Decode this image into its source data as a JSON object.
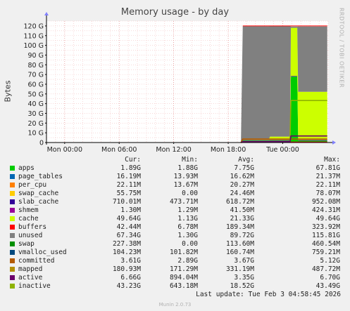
{
  "title": "Memory usage - by day",
  "ylabel": "Bytes",
  "side_label": "RRDTOOL / TOBI OETIKER",
  "footer": "Munin 2.0.73",
  "last_update": "Last update:  Tue Feb  3 04:58:45 2026",
  "legend_headers": {
    "cur": "Cur:",
    "min": "Min:",
    "avg": "Avg:",
    "max": "Max:"
  },
  "legend": [
    {
      "name": "apps",
      "color": "#00cc00",
      "cur": "1.89G",
      "min": "1.88G",
      "avg": "7.75G",
      "max": "67.81G"
    },
    {
      "name": "page_tables",
      "color": "#0066b3",
      "cur": "16.19M",
      "min": "13.93M",
      "avg": "16.62M",
      "max": "21.37M"
    },
    {
      "name": "per_cpu",
      "color": "#ff8000",
      "cur": "22.11M",
      "min": "13.67M",
      "avg": "20.27M",
      "max": "22.11M"
    },
    {
      "name": "swap_cache",
      "color": "#ffcc00",
      "cur": "55.75M",
      "min": "0.00",
      "avg": "24.46M",
      "max": "78.07M"
    },
    {
      "name": "slab_cache",
      "color": "#330099",
      "cur": "710.01M",
      "min": "473.71M",
      "avg": "618.72M",
      "max": "952.08M"
    },
    {
      "name": "shmem",
      "color": "#990099",
      "cur": "1.30M",
      "min": "1.29M",
      "avg": "41.50M",
      "max": "424.31M"
    },
    {
      "name": "cache",
      "color": "#ccff00",
      "cur": "49.64G",
      "min": "1.13G",
      "avg": "21.33G",
      "max": "49.64G"
    },
    {
      "name": "buffers",
      "color": "#ff0000",
      "cur": "42.44M",
      "min": "6.78M",
      "avg": "189.34M",
      "max": "323.92M"
    },
    {
      "name": "unused",
      "color": "#808080",
      "cur": "67.34G",
      "min": "1.30G",
      "avg": "89.72G",
      "max": "115.81G"
    },
    {
      "name": "swap",
      "color": "#008f00",
      "cur": "227.38M",
      "min": "0.00",
      "avg": "113.60M",
      "max": "460.54M"
    },
    {
      "name": "vmalloc_used",
      "color": "#00487d",
      "cur": "104.23M",
      "min": "101.82M",
      "avg": "160.74M",
      "max": "759.21M"
    },
    {
      "name": "committed",
      "color": "#b35a00",
      "cur": "3.61G",
      "min": "2.89G",
      "avg": "3.67G",
      "max": "5.12G"
    },
    {
      "name": "mapped",
      "color": "#b38f00",
      "cur": "180.93M",
      "min": "171.29M",
      "avg": "331.19M",
      "max": "487.72M"
    },
    {
      "name": "active",
      "color": "#6b006b",
      "cur": "6.66G",
      "min": "894.04M",
      "avg": "3.35G",
      "max": "6.70G"
    },
    {
      "name": "inactive",
      "color": "#8fb300",
      "cur": "43.23G",
      "min": "643.18M",
      "avg": "18.52G",
      "max": "43.49G"
    }
  ],
  "chart_data": {
    "type": "area",
    "title": "Memory usage - by day",
    "ylabel": "Bytes",
    "x_ticks": [
      "Mon 00:00",
      "Mon 06:00",
      "Mon 12:00",
      "Mon 18:00",
      "Tue 00:00"
    ],
    "y_ticks": [
      "0",
      "10 G",
      "20 G",
      "30 G",
      "40 G",
      "50 G",
      "60 G",
      "70 G",
      "80 G",
      "90 G",
      "100 G",
      "110 G",
      "120 G"
    ],
    "ylim": [
      0,
      125
    ],
    "x_hours_range": [
      -26,
      5
    ],
    "grid": true,
    "stack_order": [
      "apps",
      "slab_cache",
      "cache",
      "unused",
      "swap"
    ],
    "stacked_series": [
      {
        "name": "apps",
        "color": "#00cc00",
        "points": [
          [
            19.4,
            0
          ],
          [
            19.6,
            2.1
          ],
          [
            22.5,
            2.0
          ],
          [
            22.6,
            1.9
          ],
          [
            24.8,
            1.9
          ],
          [
            24.9,
            67.8
          ],
          [
            25.6,
            67.8
          ],
          [
            25.7,
            1.9
          ],
          [
            28.9,
            1.9
          ]
        ]
      },
      {
        "name": "slab_cache",
        "color": "#330099",
        "points": [
          [
            19.4,
            0
          ],
          [
            19.6,
            0.6
          ],
          [
            28.9,
            0.7
          ]
        ]
      },
      {
        "name": "cache",
        "color": "#ccff00",
        "points": [
          [
            19.4,
            0
          ],
          [
            19.6,
            1.3
          ],
          [
            22.5,
            1.2
          ],
          [
            22.6,
            3.5
          ],
          [
            24.8,
            3.5
          ],
          [
            24.9,
            49.6
          ],
          [
            25.6,
            49.6
          ],
          [
            25.7,
            49.6
          ],
          [
            28.9,
            49.6
          ]
        ]
      },
      {
        "name": "unused",
        "color": "#808080",
        "points": [
          [
            19.4,
            0
          ],
          [
            19.6,
            115.8
          ],
          [
            22.5,
            115.8
          ],
          [
            22.6,
            114.0
          ],
          [
            24.8,
            114.0
          ],
          [
            24.9,
            1.3
          ],
          [
            25.6,
            1.3
          ],
          [
            25.7,
            67.3
          ],
          [
            28.9,
            67.3
          ]
        ]
      }
    ],
    "line_series": [
      {
        "name": "committed",
        "color": "#b35a00",
        "points": [
          [
            19.4,
            0
          ],
          [
            19.6,
            3.6
          ],
          [
            28.9,
            3.6
          ]
        ]
      },
      {
        "name": "inactive",
        "color": "#8fb300",
        "points": [
          [
            19.4,
            0
          ],
          [
            19.6,
            1.0
          ],
          [
            24.8,
            1.0
          ],
          [
            24.9,
            43.2
          ],
          [
            28.9,
            43.2
          ]
        ]
      },
      {
        "name": "buffers",
        "color": "#ff0000",
        "points": [
          [
            19.4,
            0
          ],
          [
            19.6,
            0.3
          ],
          [
            28.9,
            0.3
          ]
        ]
      },
      {
        "name": "active",
        "color": "#6b006b",
        "points": [
          [
            19.4,
            0
          ],
          [
            19.6,
            0.9
          ],
          [
            24.8,
            0.9
          ],
          [
            24.9,
            6.7
          ],
          [
            28.9,
            6.7
          ]
        ]
      }
    ],
    "top_line": {
      "color": "#ff0000",
      "value": 120
    }
  }
}
